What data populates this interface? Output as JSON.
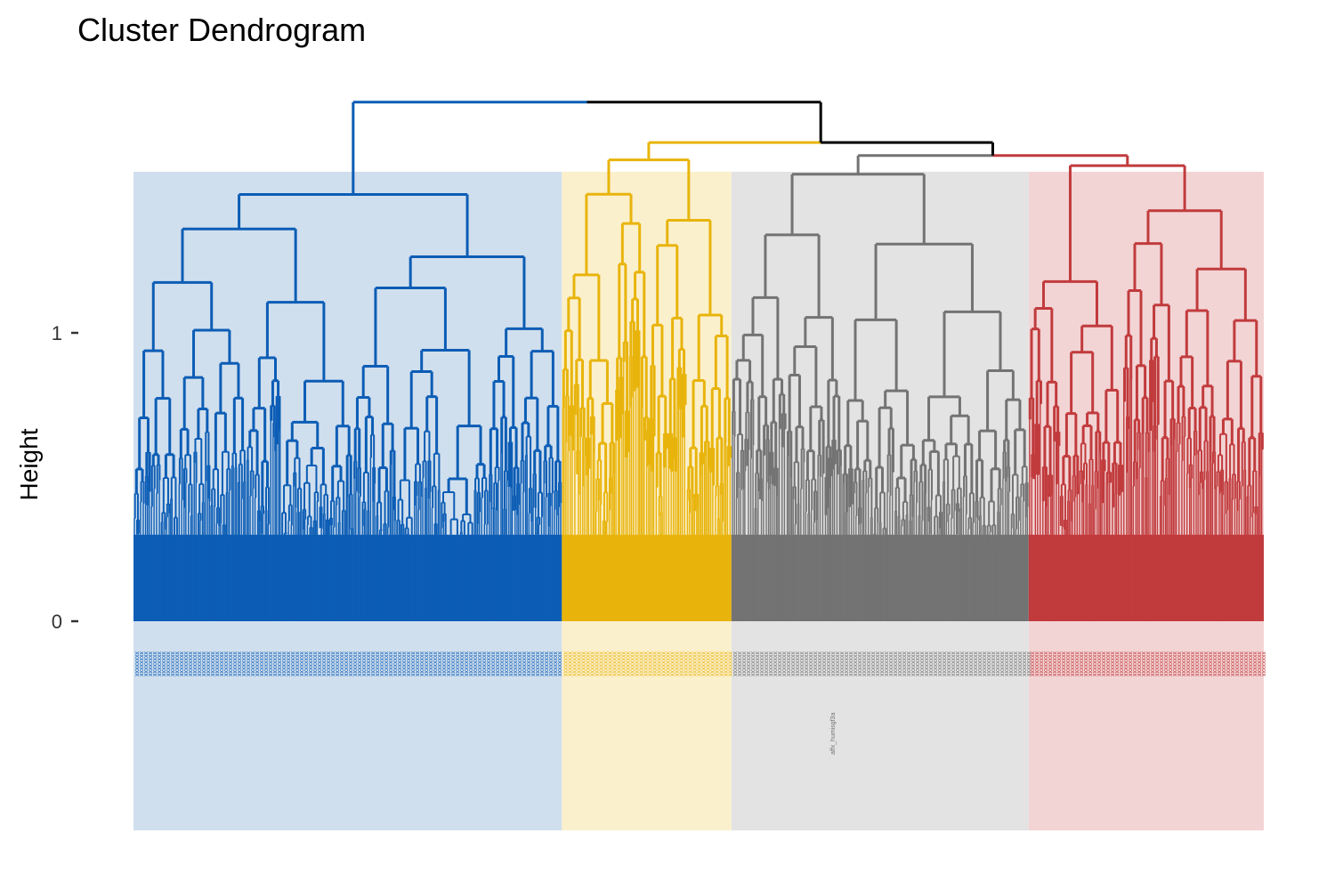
{
  "chart_data": {
    "type": "dendrogram",
    "title": "Cluster Dendrogram",
    "xlabel": "",
    "ylabel": "Height",
    "y_ticks": [
      0,
      1
    ],
    "ylim": [
      0,
      1.8
    ],
    "root_height": 1.8,
    "grid": false,
    "legend": "none",
    "k": 4,
    "visible_leaf_label": "affx_humisgf3a",
    "clusters": [
      {
        "color": "#0C5DB5",
        "fill": "#D0DFEE",
        "leaf_share": 0.379,
        "height": 1.48
      },
      {
        "color": "#E8B40C",
        "fill": "#FBF0CC",
        "leaf_share": 0.15,
        "height": 1.6
      },
      {
        "color": "#737373",
        "fill": "#E3E3E3",
        "leaf_share": 0.263,
        "height": 1.55
      },
      {
        "color": "#C13B3D",
        "fill": "#F3D4D5",
        "leaf_share": 0.208,
        "height": 1.58
      }
    ],
    "upper_merges": [
      {
        "height": 1.66,
        "color": "#000000"
      },
      {
        "height": 1.8,
        "color": "#000000"
      }
    ]
  }
}
